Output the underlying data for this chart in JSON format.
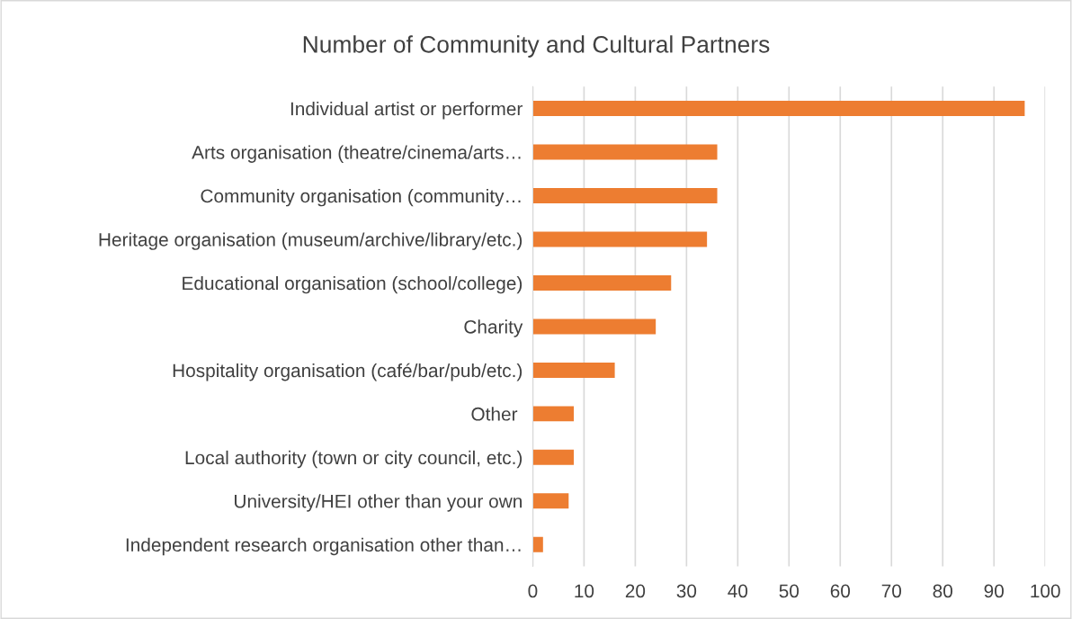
{
  "chart_data": {
    "type": "bar",
    "orientation": "horizontal",
    "title": "Number of Community and Cultural Partners",
    "categories": [
      "Individual artist or performer",
      "Arts organisation (theatre/cinema/arts…",
      "Community organisation (community…",
      "Heritage organisation (museum/archive/library/etc.)",
      "Educational organisation (school/college)",
      "Charity",
      "Hospitality organisation (café/bar/pub/etc.)",
      "Other ",
      "Local authority (town or city council, etc.)",
      "University/HEI other than your own",
      "Independent research organisation other than…"
    ],
    "values": [
      96,
      36,
      36,
      34,
      27,
      24,
      16,
      8,
      8,
      7,
      2
    ],
    "color": "#ed7d31",
    "xlim": [
      0,
      100
    ],
    "xticks": [
      0,
      10,
      20,
      30,
      40,
      50,
      60,
      70,
      80,
      90,
      100
    ],
    "grid": "x",
    "legend": false
  }
}
